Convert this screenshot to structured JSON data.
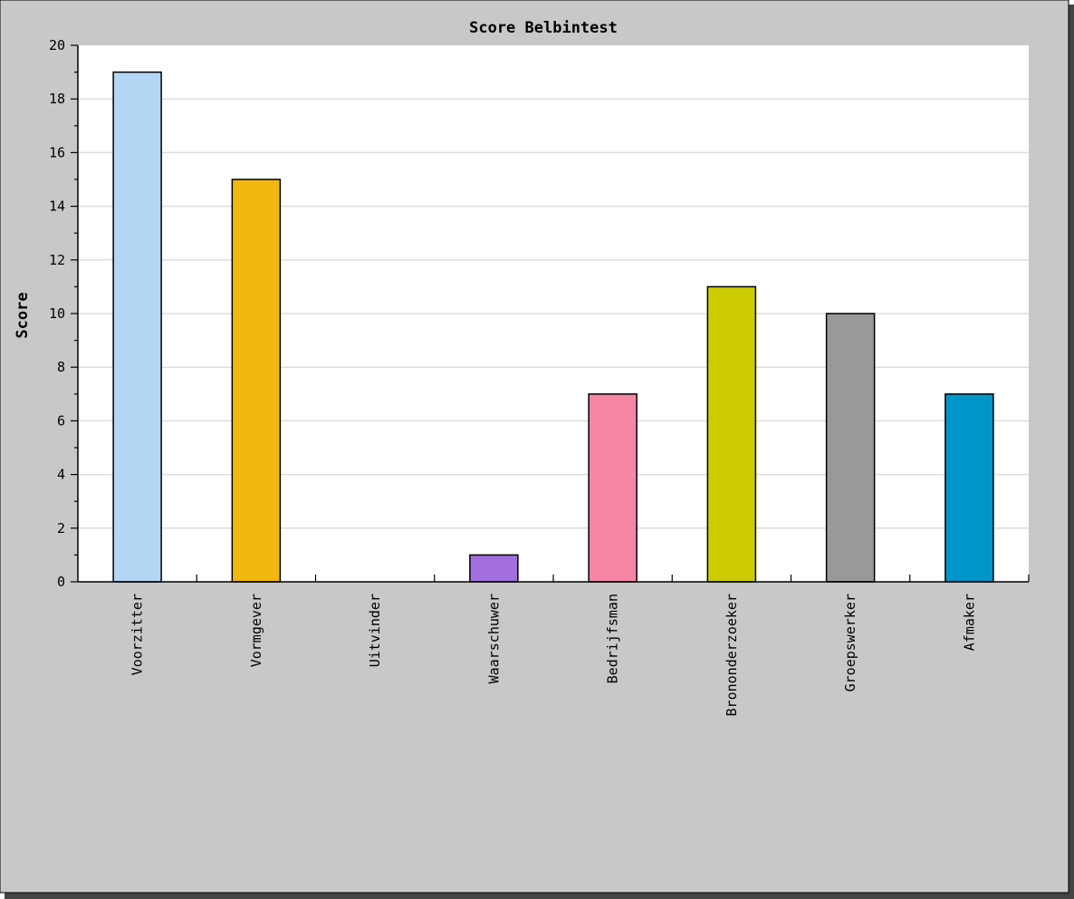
{
  "chart_data": {
    "type": "bar",
    "title": "Score Belbintest",
    "xlabel": "",
    "ylabel": "Score",
    "ylim": [
      0,
      20
    ],
    "y_ticks": [
      0,
      2,
      4,
      6,
      8,
      10,
      12,
      14,
      16,
      18,
      20
    ],
    "grid": true,
    "legend": "none",
    "categories": [
      "Voorzitter",
      "Vormgever",
      "Uitvinder",
      "Waarschuwer",
      "Bedrijfsman",
      "Brononderzoeker",
      "Groepswerker",
      "Afmaker"
    ],
    "values": [
      19,
      15,
      0,
      1,
      7,
      11,
      10,
      7
    ],
    "colors": [
      "#b3d6f5",
      "#f2b80f",
      "#f2b80f",
      "#a36ede",
      "#f786a5",
      "#cccc00",
      "#999999",
      "#0096c9"
    ]
  },
  "style": {
    "frame_background": "#c8c8c8",
    "plot_background": "#ffffff",
    "grid_color": "#dddddd",
    "bar_stroke": "#000000"
  }
}
